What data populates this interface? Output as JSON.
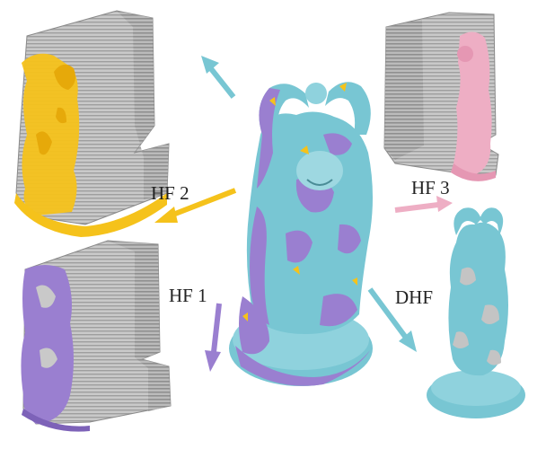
{
  "labels": {
    "hf1": "HF 1",
    "hf2": "HF 2",
    "hf3": "HF 3",
    "dhf": "DHF"
  },
  "colors": {
    "background": "#ffffff",
    "gray_extrusion": "#a9a9a9",
    "gray_light": "#d4d4d4",
    "yellow": "#f5c21b",
    "purple": "#9a7fd0",
    "pink": "#eeaec4",
    "cyan": "#78c6d3",
    "text": "#222222"
  },
  "icons": [
    "statue-center-icon",
    "yellow-extrusion-icon",
    "purple-extrusion-icon",
    "pink-extrusion-icon",
    "cyan-statue-icon",
    "arrow-icon"
  ]
}
